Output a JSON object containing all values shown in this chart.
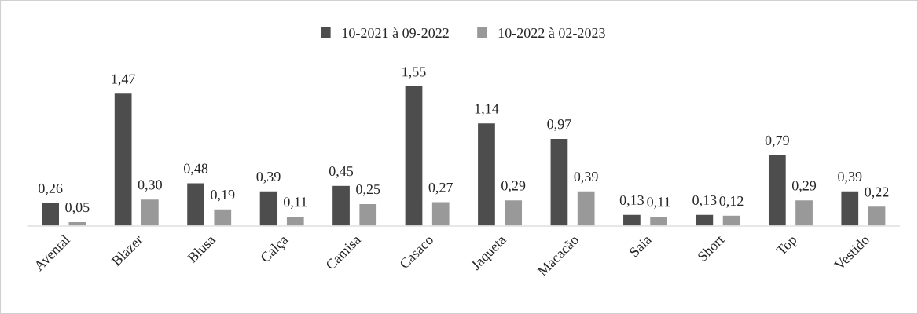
{
  "chart_data": {
    "type": "bar",
    "categories": [
      "Avental",
      "Blazer",
      "Blusa",
      "Calça",
      "Camisa",
      "Casaco",
      "Jaqueta",
      "Macacão",
      "Saia",
      "Short",
      "Top",
      "Vestido"
    ],
    "series": [
      {
        "name": "10-2021 à 09-2022",
        "color": "#4d4d4d",
        "values": [
          0.26,
          1.47,
          0.48,
          0.39,
          0.45,
          1.55,
          1.14,
          0.97,
          0.13,
          0.13,
          0.79,
          0.39
        ],
        "value_labels": [
          "0,26",
          "1,47",
          "0,48",
          "0,39",
          "0,45",
          "1,55",
          "1,14",
          "0,97",
          "0,13",
          "0,13",
          "0,79",
          "0,39"
        ]
      },
      {
        "name": "10-2022 à 02-2023",
        "color": "#999999",
        "values": [
          0.05,
          0.3,
          0.19,
          0.11,
          0.25,
          0.27,
          0.29,
          0.39,
          0.11,
          0.12,
          0.29,
          0.22
        ],
        "value_labels": [
          "0,05",
          "0,30",
          "0,19",
          "0,11",
          "0,25",
          "0,27",
          "0,29",
          "0,39",
          "0,11",
          "0,12",
          "0,29",
          "0,22"
        ]
      }
    ],
    "legend": "top",
    "grid": false
  }
}
